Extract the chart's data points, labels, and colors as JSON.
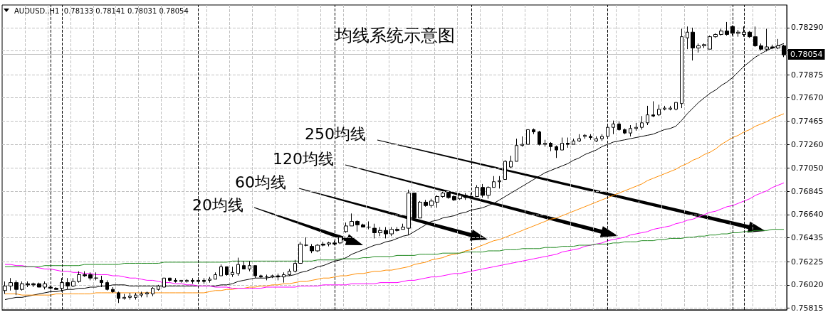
{
  "chart_data": {
    "type": "candlestick",
    "title": "均线系统示意图",
    "annotations": [
      "AUDUSD.,H1  0.78133 0.78141 0.78031 0.78054",
      "20均线",
      "60均线",
      "120均线",
      "250均线"
    ],
    "categories": [
      null,
      null,
      null,
      null,
      null,
      null,
      null,
      null,
      null,
      null,
      null,
      null,
      null,
      null,
      null,
      null,
      null,
      null,
      null,
      null,
      null,
      null,
      null,
      null,
      null,
      null,
      null,
      null,
      null,
      null,
      null,
      null,
      null,
      null,
      null,
      null,
      null,
      null,
      null,
      null,
      null,
      null,
      null,
      null,
      null,
      null,
      null,
      null,
      null,
      null,
      null,
      null,
      null,
      null,
      null,
      null,
      null,
      null,
      null,
      null,
      null,
      null,
      null,
      null,
      null,
      null,
      null,
      null,
      null,
      null,
      null,
      null,
      null,
      null,
      null,
      null,
      null,
      null,
      null,
      null,
      null,
      null,
      null,
      null,
      null,
      null,
      null,
      null,
      null,
      null,
      null,
      null,
      null,
      null,
      null,
      null,
      null,
      null,
      null,
      null,
      null,
      null,
      null,
      null,
      null,
      null,
      null,
      null,
      null,
      null,
      null,
      null,
      null,
      null,
      null,
      null,
      null,
      null,
      null,
      null,
      null,
      null,
      null,
      null,
      null,
      null,
      null,
      null,
      null,
      null,
      null,
      null,
      null,
      null,
      null,
      null,
      null,
      null
    ],
    "ohlc": [
      [
        0.7597,
        0.7605,
        0.7594,
        0.7601
      ],
      [
        0.7601,
        0.7608,
        0.7597,
        0.7604
      ],
      [
        0.7604,
        0.7606,
        0.7593,
        0.7598
      ],
      [
        0.7598,
        0.7605,
        0.7597,
        0.7603
      ],
      [
        0.7603,
        0.7605,
        0.76,
        0.7602
      ],
      [
        0.7603,
        0.7604,
        0.76,
        0.7602
      ],
      [
        0.7603,
        0.7604,
        0.76,
        0.76
      ],
      [
        0.76,
        0.7605,
        0.7598,
        0.7603
      ],
      [
        0.76,
        0.7601,
        0.7598,
        0.7599
      ],
      [
        0.7599,
        0.76,
        0.7598,
        0.7598
      ],
      [
        0.7599,
        0.7608,
        0.7596,
        0.7604
      ],
      [
        0.7604,
        0.7608,
        0.7598,
        0.7601
      ],
      [
        0.7601,
        0.7608,
        0.76,
        0.7605
      ],
      [
        0.7605,
        0.7614,
        0.7604,
        0.7611
      ],
      [
        0.7611,
        0.7614,
        0.7609,
        0.761
      ],
      [
        0.7611,
        0.7613,
        0.7606,
        0.7608
      ],
      [
        0.7608,
        0.7613,
        0.7606,
        0.7608
      ],
      [
        0.7606,
        0.761,
        0.76,
        0.7604
      ],
      [
        0.7604,
        0.7606,
        0.7597,
        0.7598
      ],
      [
        0.7598,
        0.76,
        0.7595,
        0.7596
      ],
      [
        0.7595,
        0.7596,
        0.7586,
        0.759
      ],
      [
        0.759,
        0.7594,
        0.7589,
        0.7591
      ],
      [
        0.7591,
        0.7595,
        0.7589,
        0.7592
      ],
      [
        0.7591,
        0.7595,
        0.7589,
        0.7593
      ],
      [
        0.7593,
        0.7596,
        0.7591,
        0.7594
      ],
      [
        0.7594,
        0.7596,
        0.7591,
        0.7595
      ],
      [
        0.7594,
        0.76,
        0.7592,
        0.7599
      ],
      [
        0.7598,
        0.7602,
        0.7597,
        0.7601
      ],
      [
        0.76,
        0.7608,
        0.76,
        0.7608
      ],
      [
        0.7608,
        0.7608,
        0.7605,
        0.7606
      ],
      [
        0.7606,
        0.7608,
        0.7604,
        0.7605
      ],
      [
        0.7605,
        0.7606,
        0.7604,
        0.7606
      ],
      [
        0.7605,
        0.7607,
        0.7604,
        0.7606
      ],
      [
        0.7606,
        0.7608,
        0.7603,
        0.7605
      ],
      [
        0.7606,
        0.7607,
        0.7603,
        0.7605
      ],
      [
        0.7606,
        0.7608,
        0.7603,
        0.7605
      ],
      [
        0.7606,
        0.7609,
        0.7604,
        0.7607
      ],
      [
        0.7607,
        0.7613,
        0.7607,
        0.7611
      ],
      [
        0.761,
        0.762,
        0.761,
        0.7618
      ],
      [
        0.7618,
        0.7618,
        0.761,
        0.7611
      ],
      [
        0.7611,
        0.7618,
        0.7609,
        0.7613
      ],
      [
        0.7612,
        0.7626,
        0.761,
        0.762
      ],
      [
        0.7619,
        0.7623,
        0.7616,
        0.7616
      ],
      [
        0.7616,
        0.7623,
        0.7614,
        0.7619
      ],
      [
        0.7619,
        0.7619,
        0.7608,
        0.761
      ],
      [
        0.761,
        0.7611,
        0.7608,
        0.7609
      ],
      [
        0.7609,
        0.7611,
        0.7606,
        0.7609
      ],
      [
        0.7609,
        0.7611,
        0.7608,
        0.761
      ],
      [
        0.761,
        0.7612,
        0.7606,
        0.7609
      ],
      [
        0.7609,
        0.7613,
        0.7604,
        0.7611
      ],
      [
        0.7611,
        0.7616,
        0.761,
        0.7614
      ],
      [
        0.7614,
        0.7624,
        0.7613,
        0.7621
      ],
      [
        0.7621,
        0.764,
        0.7621,
        0.7638
      ],
      [
        0.7637,
        0.7644,
        0.7636,
        0.7637
      ],
      [
        0.7636,
        0.7638,
        0.763,
        0.7632
      ],
      [
        0.7632,
        0.7638,
        0.7631,
        0.7637
      ],
      [
        0.7638,
        0.764,
        0.7636,
        0.7637
      ],
      [
        0.7638,
        0.764,
        0.7636,
        0.7639
      ],
      [
        0.7639,
        0.7641,
        0.7637,
        0.7638
      ],
      [
        0.7639,
        0.7646,
        0.7638,
        0.7644
      ],
      [
        0.7649,
        0.7657,
        0.7648,
        0.7654
      ],
      [
        0.7654,
        0.7665,
        0.7654,
        0.7658
      ],
      [
        0.7658,
        0.7659,
        0.7649,
        0.7655
      ],
      [
        0.7655,
        0.7656,
        0.7653,
        0.7653
      ],
      [
        0.7653,
        0.7658,
        0.7651,
        0.7653
      ],
      [
        0.7652,
        0.7656,
        0.7643,
        0.7648
      ],
      [
        0.7648,
        0.7653,
        0.7645,
        0.765
      ],
      [
        0.765,
        0.7653,
        0.7643,
        0.7647
      ],
      [
        0.7647,
        0.7653,
        0.7645,
        0.7651
      ],
      [
        0.7651,
        0.7653,
        0.7649,
        0.765
      ],
      [
        0.7651,
        0.7656,
        0.7651,
        0.7653
      ],
      [
        0.7652,
        0.7686,
        0.7646,
        0.7683
      ],
      [
        0.7683,
        0.7683,
        0.7661,
        0.7661
      ],
      [
        0.7661,
        0.7676,
        0.7661,
        0.7675
      ],
      [
        0.7675,
        0.7677,
        0.7671,
        0.7672
      ],
      [
        0.7672,
        0.7678,
        0.767,
        0.7676
      ],
      [
        0.7675,
        0.7681,
        0.767,
        0.768
      ],
      [
        0.768,
        0.7684,
        0.7679,
        0.7683
      ],
      [
        0.7683,
        0.7683,
        0.7678,
        0.7679
      ],
      [
        0.768,
        0.7681,
        0.7676,
        0.7677
      ],
      [
        0.7678,
        0.7683,
        0.7677,
        0.7681
      ],
      [
        0.7681,
        0.7683,
        0.7677,
        0.7679
      ],
      [
        0.768,
        0.7683,
        0.7677,
        0.768
      ],
      [
        0.768,
        0.769,
        0.768,
        0.7688
      ],
      [
        0.7688,
        0.7691,
        0.7679,
        0.7681
      ],
      [
        0.7681,
        0.7689,
        0.7678,
        0.7688
      ],
      [
        0.7688,
        0.7698,
        0.7688,
        0.7693
      ],
      [
        0.7693,
        0.7698,
        0.7687,
        0.7694
      ],
      [
        0.7695,
        0.7712,
        0.7695,
        0.7711
      ],
      [
        0.7706,
        0.7716,
        0.7705,
        0.7711
      ],
      [
        0.7711,
        0.7731,
        0.7711,
        0.7725
      ],
      [
        0.7725,
        0.7733,
        0.7724,
        0.7726
      ],
      [
        0.7726,
        0.7739,
        0.7726,
        0.7739
      ],
      [
        0.7739,
        0.774,
        0.7735,
        0.7737
      ],
      [
        0.7737,
        0.7738,
        0.7725,
        0.7726
      ],
      [
        0.7726,
        0.773,
        0.7724,
        0.7727
      ],
      [
        0.7727,
        0.7728,
        0.772,
        0.7724
      ],
      [
        0.7724,
        0.7725,
        0.7714,
        0.7721
      ],
      [
        0.7721,
        0.7732,
        0.7721,
        0.7727
      ],
      [
        0.7727,
        0.7732,
        0.7723,
        0.7726
      ],
      [
        0.7726,
        0.7731,
        0.7726,
        0.7729
      ],
      [
        0.7729,
        0.7735,
        0.7728,
        0.7731
      ],
      [
        0.7733,
        0.7735,
        0.7731,
        0.7734
      ],
      [
        0.7733,
        0.7735,
        0.773,
        0.7732
      ],
      [
        0.7729,
        0.7733,
        0.7728,
        0.7731
      ],
      [
        0.7731,
        0.7735,
        0.7729,
        0.7733
      ],
      [
        0.7733,
        0.7743,
        0.7731,
        0.7741
      ],
      [
        0.7741,
        0.7747,
        0.7735,
        0.7744
      ],
      [
        0.7744,
        0.7746,
        0.7738,
        0.7739
      ],
      [
        0.7739,
        0.774,
        0.7735,
        0.7736
      ],
      [
        0.7736,
        0.7743,
        0.7733,
        0.774
      ],
      [
        0.774,
        0.7745,
        0.7738,
        0.7741
      ],
      [
        0.7741,
        0.7751,
        0.7739,
        0.7745
      ],
      [
        0.7745,
        0.776,
        0.7743,
        0.7752
      ],
      [
        0.7752,
        0.7764,
        0.775,
        0.7751
      ],
      [
        0.7752,
        0.7761,
        0.7751,
        0.7757
      ],
      [
        0.7757,
        0.776,
        0.7756,
        0.7758
      ],
      [
        0.7757,
        0.776,
        0.7756,
        0.7758
      ],
      [
        0.7757,
        0.7763,
        0.7756,
        0.7763
      ],
      [
        0.7762,
        0.7828,
        0.7758,
        0.7821
      ],
      [
        0.782,
        0.783,
        0.781,
        0.7825
      ],
      [
        0.7825,
        0.7829,
        0.78,
        0.7811
      ],
      [
        0.7811,
        0.7815,
        0.7807,
        0.7813
      ],
      [
        0.7813,
        0.7815,
        0.7811,
        0.7814
      ],
      [
        0.781,
        0.7822,
        0.781,
        0.7821
      ],
      [
        0.7821,
        0.7824,
        0.782,
        0.7823
      ],
      [
        0.7823,
        0.7828,
        0.7822,
        0.7826
      ],
      [
        0.7826,
        0.7834,
        0.7822,
        0.7823
      ],
      [
        0.783,
        0.7831,
        0.7822,
        0.7824
      ],
      [
        0.7824,
        0.7827,
        0.7821,
        0.7825
      ],
      [
        0.7823,
        0.783,
        0.7821,
        0.7825
      ],
      [
        0.7825,
        0.7826,
        0.782,
        0.7821
      ],
      [
        0.7821,
        0.783,
        0.7812,
        0.7813
      ],
      [
        0.7813,
        0.7815,
        0.7809,
        0.781
      ],
      [
        0.781,
        0.7828,
        0.7808,
        0.7812
      ],
      [
        0.7812,
        0.7814,
        0.781,
        0.7811
      ],
      [
        0.7811,
        0.7819,
        0.781,
        0.7813
      ],
      [
        0.7813,
        0.7814,
        0.7803,
        0.7805
      ]
    ],
    "series": [
      {
        "type": "line",
        "color": "#000000",
        "values": [
          0.7589,
          0.759,
          0.7591,
          0.7591,
          0.7592,
          0.7593,
          0.7594,
          0.7595,
          0.7596,
          0.7596,
          0.7597,
          0.7598,
          0.7598,
          0.7599,
          0.7599,
          0.76,
          0.76,
          0.7601,
          0.7601,
          0.7602,
          0.7602,
          0.7602,
          0.7601,
          0.7601,
          0.7601,
          0.7601,
          0.7601,
          0.7601,
          0.7601,
          0.7601,
          0.7601,
          0.7601,
          0.7601,
          0.7601,
          0.7601,
          0.7601,
          0.7601,
          0.7601,
          0.7602,
          0.7602,
          0.7603,
          0.7605,
          0.7606,
          0.7607,
          0.7608,
          0.7608,
          0.7608,
          0.7609,
          0.7609,
          0.761,
          0.761,
          0.7611,
          0.7613,
          0.7614,
          0.7616,
          0.7618,
          0.7619,
          0.7621,
          0.7623,
          0.7624,
          0.7626,
          0.7629,
          0.7631,
          0.7633,
          0.7635,
          0.7637,
          0.7638,
          0.764,
          0.7641,
          0.7643,
          0.7645,
          0.7646,
          0.7649,
          0.7652,
          0.7655,
          0.7658,
          0.7659,
          0.7661,
          0.7662,
          0.7663,
          0.7665,
          0.7666,
          0.7668,
          0.7669,
          0.767,
          0.7672,
          0.7674,
          0.7677,
          0.768,
          0.7683,
          0.7686,
          0.7689,
          0.7692,
          0.7695,
          0.7698,
          0.7701,
          0.7703,
          0.7705,
          0.7707,
          0.7709,
          0.7712,
          0.7714,
          0.7717,
          0.7719,
          0.7721,
          0.7724,
          0.7726,
          0.7728,
          0.7729,
          0.773,
          0.7731,
          0.7732,
          0.7733,
          0.7734,
          0.7735,
          0.7737,
          0.7739,
          0.774,
          0.7742,
          0.7747,
          0.7753,
          0.7758,
          0.7763,
          0.7767,
          0.7771,
          0.7774,
          0.7778,
          0.7781,
          0.7785,
          0.779,
          0.7795,
          0.7799,
          0.7803,
          0.7806,
          0.7809,
          0.7811,
          0.7813,
          0.7815
        ]
      },
      {
        "type": "line",
        "color": "#ff8c00",
        "values": [
          0.7594,
          0.7594,
          0.7594,
          0.7593,
          0.7593,
          0.7593,
          0.7593,
          0.7593,
          0.7593,
          0.7594,
          0.7594,
          0.7594,
          0.7594,
          0.7594,
          0.7594,
          0.7594,
          0.7595,
          0.7595,
          0.7595,
          0.7595,
          0.7595,
          0.7595,
          0.7595,
          0.7595,
          0.7595,
          0.7595,
          0.7595,
          0.7595,
          0.7595,
          0.7595,
          0.7595,
          0.7595,
          0.7595,
          0.7595,
          0.7595,
          0.7595,
          0.7596,
          0.7597,
          0.7597,
          0.7598,
          0.7598,
          0.7599,
          0.7599,
          0.76,
          0.76,
          0.7601,
          0.7601,
          0.7602,
          0.7602,
          0.7603,
          0.7603,
          0.7604,
          0.7605,
          0.7605,
          0.7606,
          0.7607,
          0.7608,
          0.7608,
          0.7609,
          0.761,
          0.761,
          0.7611,
          0.7612,
          0.7612,
          0.7613,
          0.7614,
          0.7614,
          0.7615,
          0.7615,
          0.7616,
          0.7617,
          0.7618,
          0.762,
          0.7621,
          0.7622,
          0.7624,
          0.7625,
          0.7626,
          0.7628,
          0.7629,
          0.763,
          0.7632,
          0.7633,
          0.7635,
          0.7637,
          0.7639,
          0.7641,
          0.7642,
          0.7644,
          0.7646,
          0.7648,
          0.765,
          0.7652,
          0.7654,
          0.7656,
          0.7658,
          0.766,
          0.7661,
          0.7663,
          0.7665,
          0.7667,
          0.7669,
          0.7671,
          0.7673,
          0.7675,
          0.7677,
          0.7679,
          0.7681,
          0.7683,
          0.7685,
          0.7687,
          0.7689,
          0.7691,
          0.7694,
          0.7696,
          0.7698,
          0.77,
          0.7702,
          0.7704,
          0.7707,
          0.7709,
          0.7712,
          0.7714,
          0.7717,
          0.7719,
          0.7722,
          0.7726,
          0.7729,
          0.7732,
          0.7734,
          0.7737,
          0.7739,
          0.7742,
          0.7744,
          0.7746,
          0.7749,
          0.7751,
          0.7753
        ]
      },
      {
        "type": "line",
        "color": "#ff00ff",
        "values": [
          0.762,
          0.762,
          0.7619,
          0.7619,
          0.7618,
          0.7618,
          0.7617,
          0.7616,
          0.7616,
          0.7615,
          0.7614,
          0.7614,
          0.7613,
          0.7613,
          0.7612,
          0.7612,
          0.7611,
          0.7611,
          0.7611,
          0.761,
          0.761,
          0.7609,
          0.7608,
          0.7608,
          0.7607,
          0.7606,
          0.7606,
          0.7605,
          0.7604,
          0.7604,
          0.7603,
          0.7603,
          0.7602,
          0.7602,
          0.7601,
          0.7601,
          0.7601,
          0.76,
          0.76,
          0.76,
          0.7599,
          0.7599,
          0.7599,
          0.7599,
          0.7599,
          0.7599,
          0.76,
          0.76,
          0.76,
          0.76,
          0.76,
          0.76,
          0.7601,
          0.7601,
          0.7601,
          0.7601,
          0.7602,
          0.7602,
          0.7602,
          0.7602,
          0.7602,
          0.7603,
          0.7603,
          0.7603,
          0.7603,
          0.7603,
          0.7604,
          0.7604,
          0.7604,
          0.7604,
          0.7605,
          0.7606,
          0.7606,
          0.7607,
          0.7608,
          0.7609,
          0.7609,
          0.761,
          0.7611,
          0.7612,
          0.7612,
          0.7613,
          0.7614,
          0.7615,
          0.7616,
          0.7617,
          0.7618,
          0.7619,
          0.762,
          0.7621,
          0.7622,
          0.7623,
          0.7624,
          0.7625,
          0.7626,
          0.7627,
          0.7628,
          0.7629,
          0.7631,
          0.7632,
          0.7633,
          0.7634,
          0.7636,
          0.7637,
          0.7638,
          0.7639,
          0.7641,
          0.7642,
          0.7643,
          0.7644,
          0.7646,
          0.7647,
          0.7648,
          0.7649,
          0.7651,
          0.7652,
          0.7653,
          0.7654,
          0.7656,
          0.7657,
          0.7659,
          0.766,
          0.7662,
          0.7664,
          0.7666,
          0.7667,
          0.7669,
          0.7671,
          0.7672,
          0.7674,
          0.7676,
          0.7678,
          0.7681,
          0.7683,
          0.7685,
          0.7688,
          0.769,
          0.7692
        ]
      },
      {
        "type": "line",
        "color": "#228b22",
        "values": [
          0.7618,
          0.7618,
          0.7618,
          0.7618,
          0.7618,
          0.7618,
          0.7618,
          0.7619,
          0.7619,
          0.7619,
          0.7619,
          0.7619,
          0.7619,
          0.7619,
          0.762,
          0.762,
          0.762,
          0.762,
          0.762,
          0.762,
          0.762,
          0.7621,
          0.7621,
          0.7621,
          0.7621,
          0.7621,
          0.7621,
          0.7621,
          0.7622,
          0.7622,
          0.7622,
          0.7622,
          0.7622,
          0.7622,
          0.7622,
          0.7622,
          0.7622,
          0.7622,
          0.7622,
          0.7622,
          0.7623,
          0.7623,
          0.7623,
          0.7623,
          0.7623,
          0.7623,
          0.7623,
          0.7623,
          0.7623,
          0.7623,
          0.7623,
          0.7623,
          0.7623,
          0.7623,
          0.7623,
          0.7624,
          0.7624,
          0.7624,
          0.7624,
          0.7625,
          0.7625,
          0.7625,
          0.7625,
          0.7626,
          0.7626,
          0.7627,
          0.7627,
          0.7627,
          0.7627,
          0.7628,
          0.7628,
          0.7628,
          0.7628,
          0.7629,
          0.7629,
          0.7629,
          0.7629,
          0.763,
          0.763,
          0.763,
          0.763,
          0.7631,
          0.7631,
          0.7631,
          0.7631,
          0.7632,
          0.7632,
          0.7632,
          0.7633,
          0.7633,
          0.7633,
          0.7634,
          0.7634,
          0.7634,
          0.7634,
          0.7635,
          0.7635,
          0.7635,
          0.7636,
          0.7636,
          0.7636,
          0.7637,
          0.7637,
          0.7637,
          0.7638,
          0.7638,
          0.7638,
          0.7639,
          0.7639,
          0.764,
          0.764,
          0.764,
          0.7641,
          0.7641,
          0.7641,
          0.7642,
          0.7642,
          0.7643,
          0.7643,
          0.7643,
          0.7644,
          0.7644,
          0.7645,
          0.7645,
          0.7646,
          0.7646,
          0.7647,
          0.7647,
          0.7648,
          0.7648,
          0.7649,
          0.7649,
          0.765,
          0.765,
          0.765,
          0.7651,
          0.7651,
          0.7651
        ]
      }
    ],
    "ylim": [
      0.758,
      0.7849
    ],
    "yticks": [
      {
        "value": 0.75815,
        "label": "0.75815"
      },
      {
        "value": 0.7602,
        "label": "0.76020"
      },
      {
        "value": 0.76225,
        "label": "0.76225"
      },
      {
        "value": 0.76435,
        "label": "0.76435"
      },
      {
        "value": 0.7664,
        "label": "0.76640"
      },
      {
        "value": 0.76845,
        "label": "0.76845"
      },
      {
        "value": 0.7705,
        "label": "0.77050"
      },
      {
        "value": 0.7726,
        "label": "0.77260"
      },
      {
        "value": 0.77465,
        "label": "0.77465"
      },
      {
        "value": 0.7767,
        "label": "0.77670"
      },
      {
        "value": 0.77875,
        "label": "0.77875"
      },
      {
        "value": 0.78085,
        "label": null
      },
      {
        "value": 0.7829,
        "label": "0.78290"
      }
    ],
    "grid": true,
    "tick_labels": "y",
    "ref_lines": [
      {
        "axis": "y",
        "value": 0.78054,
        "label": "0.78054",
        "color": "#c0c0c0",
        "line_style": "solid"
      }
    ]
  }
}
